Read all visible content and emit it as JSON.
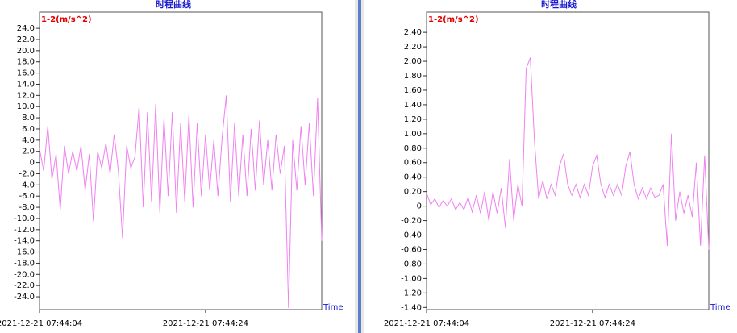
{
  "chart_data": [
    {
      "type": "line",
      "title": "时程曲线",
      "y_label": "1-2(m/s^2)",
      "x_label": "Time",
      "color": "#f080f0",
      "xlim": [
        "07:44:04",
        "07:44:38"
      ],
      "xticks": [
        {
          "value": "07:44:04",
          "label": "2021-12-21 07:44:04"
        },
        {
          "value": "07:44:24",
          "label": "2021-12-21 07:44:24"
        }
      ],
      "ylim": [
        -26.3,
        26.9
      ],
      "yticks": [
        {
          "value": 24,
          "label": "24.0"
        },
        {
          "value": 22,
          "label": "22.0"
        },
        {
          "value": 20,
          "label": "20.0"
        },
        {
          "value": 18,
          "label": "18.0"
        },
        {
          "value": 16,
          "label": "16.0"
        },
        {
          "value": 14,
          "label": "14.0"
        },
        {
          "value": 12,
          "label": "12.0"
        },
        {
          "value": 10,
          "label": "10.0"
        },
        {
          "value": 8,
          "label": "8.0"
        },
        {
          "value": 6,
          "label": "6.0"
        },
        {
          "value": 4,
          "label": "4.0"
        },
        {
          "value": 2,
          "label": "2.0"
        },
        0,
        {
          "value": -2,
          "label": "-2.0"
        },
        {
          "value": -4,
          "label": "-4.0"
        },
        {
          "value": -6,
          "label": "-6.0"
        },
        {
          "value": -8,
          "label": "-8.0"
        },
        {
          "value": -10,
          "label": "-10.0"
        },
        {
          "value": -12,
          "label": "-12.0"
        },
        {
          "value": -14,
          "label": "-14.0"
        },
        {
          "value": -16,
          "label": "-16.0"
        },
        {
          "value": -18,
          "label": "-18.0"
        },
        {
          "value": -20,
          "label": "-20.0"
        },
        {
          "value": -22,
          "label": "-22.0"
        },
        {
          "value": -24,
          "label": "-24.0"
        }
      ],
      "x": [
        "07:44:04",
        "07:44:04.5",
        "07:44:05",
        "07:44:05.5",
        "07:44:06",
        "07:44:06.5",
        "07:44:07",
        "07:44:07.5",
        "07:44:08",
        "07:44:08.5",
        "07:44:09",
        "07:44:09.5",
        "07:44:10",
        "07:44:10.5",
        "07:44:11",
        "07:44:11.5",
        "07:44:12",
        "07:44:12.5",
        "07:44:13",
        "07:44:13.5",
        "07:44:14",
        "07:44:14.5",
        "07:44:15",
        "07:44:15.5",
        "07:44:16",
        "07:44:16.5",
        "07:44:17",
        "07:44:17.5",
        "07:44:18",
        "07:44:18.5",
        "07:44:19",
        "07:44:19.5",
        "07:44:20",
        "07:44:20.5",
        "07:44:21",
        "07:44:21.5",
        "07:44:22",
        "07:44:22.5",
        "07:44:23",
        "07:44:23.5",
        "07:44:24",
        "07:44:24.5",
        "07:44:25",
        "07:44:25.5",
        "07:44:26",
        "07:44:26.5",
        "07:44:27",
        "07:44:27.5",
        "07:44:28",
        "07:44:28.5",
        "07:44:29",
        "07:44:29.5",
        "07:44:30",
        "07:44:30.5",
        "07:44:31",
        "07:44:31.5",
        "07:44:32",
        "07:44:32.5",
        "07:44:33",
        "07:44:33.5",
        "07:44:34",
        "07:44:34.5",
        "07:44:35",
        "07:44:35.5",
        "07:44:36",
        "07:44:36.5",
        "07:44:37",
        "07:44:37.5",
        "07:44:38"
      ],
      "values": [
        2.5,
        -1.5,
        6.5,
        -3,
        1.5,
        -8.5,
        3,
        -2,
        2,
        -1.5,
        3,
        -5,
        1.5,
        -10.5,
        2,
        -1,
        3.5,
        -2,
        5,
        -1.5,
        -13.5,
        3,
        -1,
        1,
        10,
        -8,
        9,
        -7,
        10.5,
        -9,
        8,
        -6,
        9,
        -9,
        7,
        -7,
        8.5,
        -8,
        7,
        -6,
        5,
        -5,
        4,
        -6,
        4.5,
        12,
        -7,
        7,
        -6,
        5,
        -6,
        6,
        -5,
        7.5,
        -4,
        4,
        -5,
        5,
        -2,
        3,
        -26,
        4,
        -5,
        6.5,
        -4,
        7,
        -6,
        11.5,
        -14
      ]
    },
    {
      "type": "line",
      "title": "时程曲线",
      "y_label": "1-2(m/s^2)",
      "x_label": "Time",
      "color": "#f080f0",
      "xlim": [
        "07:44:04",
        "07:44:38"
      ],
      "xticks": [
        {
          "value": "07:44:04",
          "label": "2021-12-21 07:44:04"
        },
        {
          "value": "07:44:24",
          "label": "2021-12-21 07:44:24"
        }
      ],
      "ylim": [
        -1.43,
        2.68
      ],
      "yticks": [
        {
          "value": 2.4,
          "label": "2.40"
        },
        {
          "value": 2.2,
          "label": "2.20"
        },
        {
          "value": 2,
          "label": "2.00"
        },
        {
          "value": 1.8,
          "label": "1.80"
        },
        {
          "value": 1.6,
          "label": "1.60"
        },
        {
          "value": 1.4,
          "label": "1.40"
        },
        {
          "value": 1.2,
          "label": "1.20"
        },
        {
          "value": 1,
          "label": "1.00"
        },
        {
          "value": 0.8,
          "label": "0.80"
        },
        {
          "value": 0.6,
          "label": "0.60"
        },
        {
          "value": 0.4,
          "label": "0.40"
        },
        {
          "value": 0.2,
          "label": "0.20"
        },
        0,
        {
          "value": -0.2,
          "label": "-0.20"
        },
        {
          "value": -0.4,
          "label": "-0.40"
        },
        {
          "value": -0.6,
          "label": "-0.60"
        },
        {
          "value": -0.8,
          "label": "-0.80"
        },
        {
          "value": -1,
          "label": "-1.00"
        },
        {
          "value": -1.2,
          "label": "-1.20"
        },
        {
          "value": -1.4,
          "label": "-1.40"
        }
      ],
      "x": [
        "07:44:04",
        "07:44:04.5",
        "07:44:05",
        "07:44:05.5",
        "07:44:06",
        "07:44:06.5",
        "07:44:07",
        "07:44:07.5",
        "07:44:08",
        "07:44:08.5",
        "07:44:09",
        "07:44:09.5",
        "07:44:10",
        "07:44:10.5",
        "07:44:11",
        "07:44:11.5",
        "07:44:12",
        "07:44:12.5",
        "07:44:13",
        "07:44:13.5",
        "07:44:14",
        "07:44:14.5",
        "07:44:15",
        "07:44:15.5",
        "07:44:16",
        "07:44:16.5",
        "07:44:17",
        "07:44:17.5",
        "07:44:18",
        "07:44:18.5",
        "07:44:19",
        "07:44:19.5",
        "07:44:20",
        "07:44:20.5",
        "07:44:21",
        "07:44:21.5",
        "07:44:22",
        "07:44:22.5",
        "07:44:23",
        "07:44:23.5",
        "07:44:24",
        "07:44:24.5",
        "07:44:25",
        "07:44:25.5",
        "07:44:26",
        "07:44:26.5",
        "07:44:27",
        "07:44:27.5",
        "07:44:28",
        "07:44:28.5",
        "07:44:29",
        "07:44:29.5",
        "07:44:30",
        "07:44:30.5",
        "07:44:31",
        "07:44:31.5",
        "07:44:32",
        "07:44:32.5",
        "07:44:33",
        "07:44:33.5",
        "07:44:34",
        "07:44:34.5",
        "07:44:35",
        "07:44:35.5",
        "07:44:36",
        "07:44:36.5",
        "07:44:37",
        "07:44:37.5",
        "07:44:38"
      ],
      "values": [
        0.18,
        0.02,
        0.1,
        -0.02,
        0.08,
        0,
        0.1,
        -0.05,
        0.05,
        -0.05,
        0.12,
        -0.08,
        0.15,
        -0.1,
        0.2,
        -0.2,
        0.2,
        -0.1,
        0.25,
        -0.3,
        0.65,
        -0.2,
        0.3,
        0,
        1.9,
        2.05,
        0.9,
        0.1,
        0.35,
        0.1,
        0.3,
        0.15,
        0.55,
        0.72,
        0.3,
        0.15,
        0.3,
        0.12,
        0.3,
        0.15,
        0.55,
        0.7,
        0.3,
        0.12,
        0.3,
        0.15,
        0.3,
        0.15,
        0.55,
        0.75,
        0.3,
        0.1,
        0.25,
        0.1,
        0.25,
        0.12,
        0.15,
        0.3,
        -0.55,
        1.0,
        -0.2,
        0.2,
        -0.1,
        0.15,
        -0.15,
        0.6,
        -0.55,
        0.7,
        -0.6
      ]
    }
  ]
}
